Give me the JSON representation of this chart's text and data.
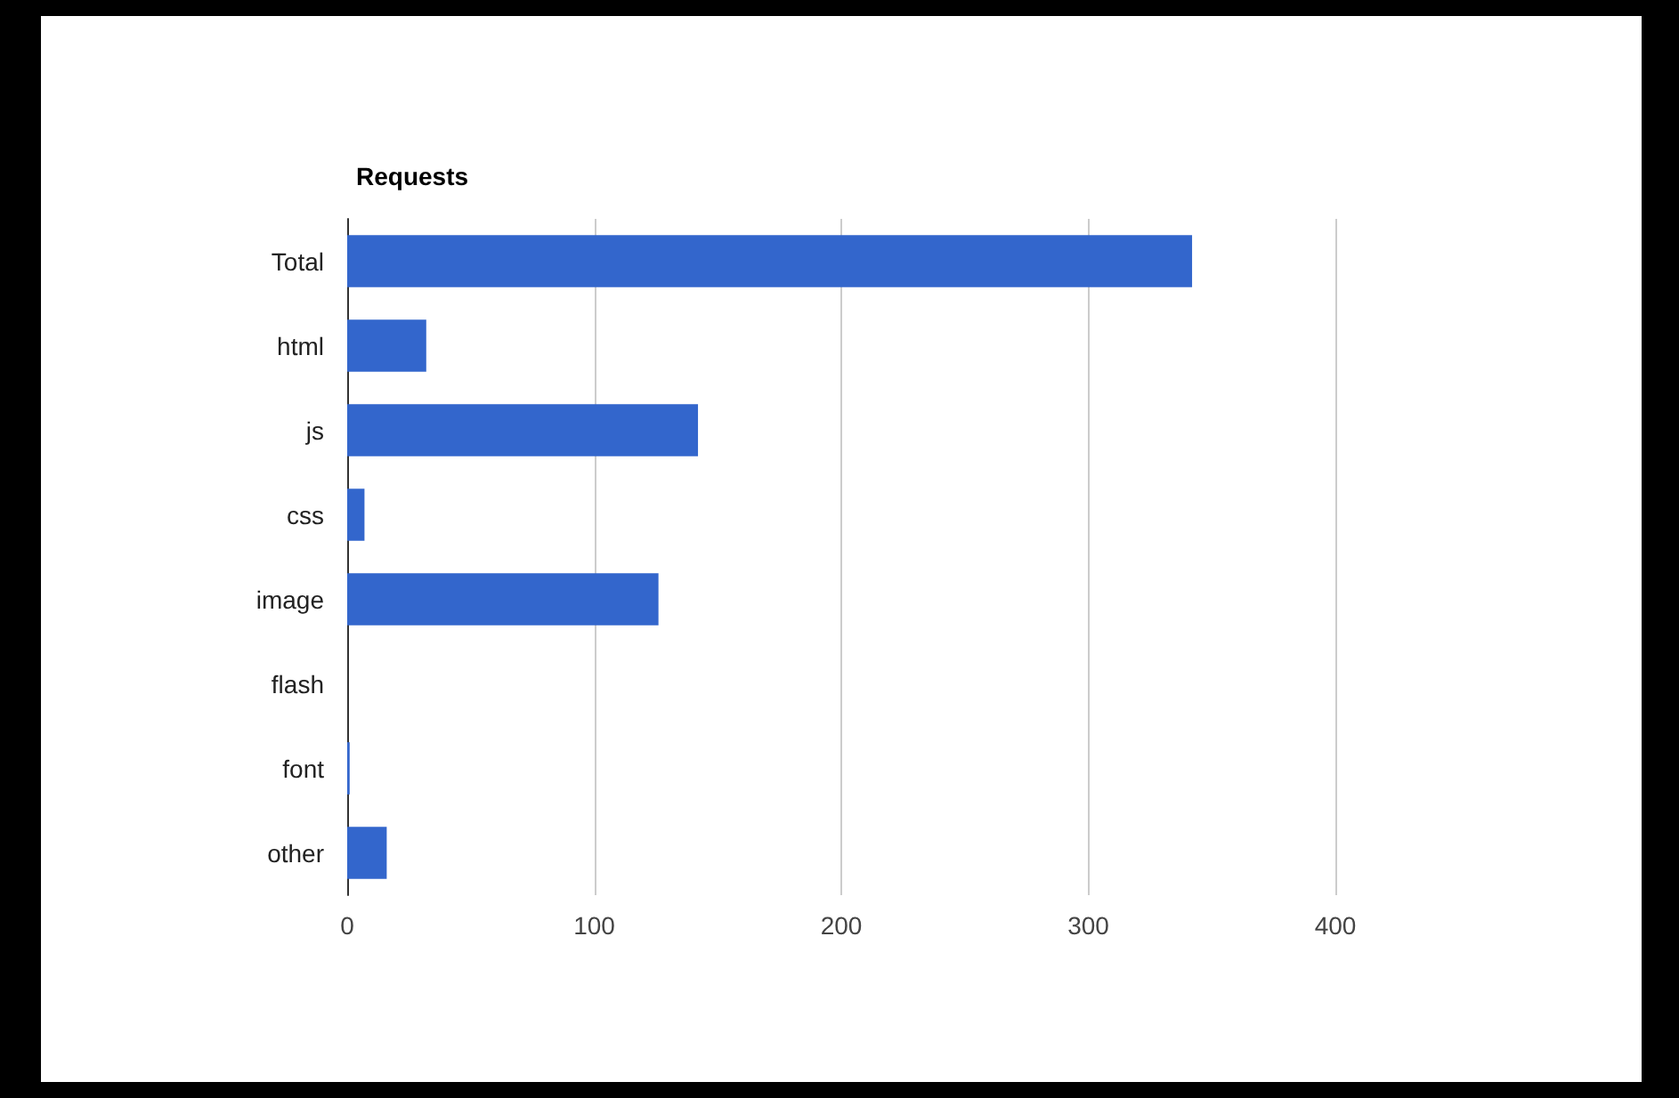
{
  "chart_data": {
    "type": "bar",
    "title": "Requests",
    "orientation": "horizontal",
    "categories": [
      "Total",
      "html",
      "js",
      "css",
      "image",
      "flash",
      "font",
      "other"
    ],
    "values": [
      342,
      32,
      142,
      7,
      126,
      0,
      1,
      16
    ],
    "color": "#3366cc",
    "xlim": [
      0,
      400
    ],
    "xticks": [
      0,
      100,
      200,
      300,
      400
    ],
    "grid": "x"
  }
}
